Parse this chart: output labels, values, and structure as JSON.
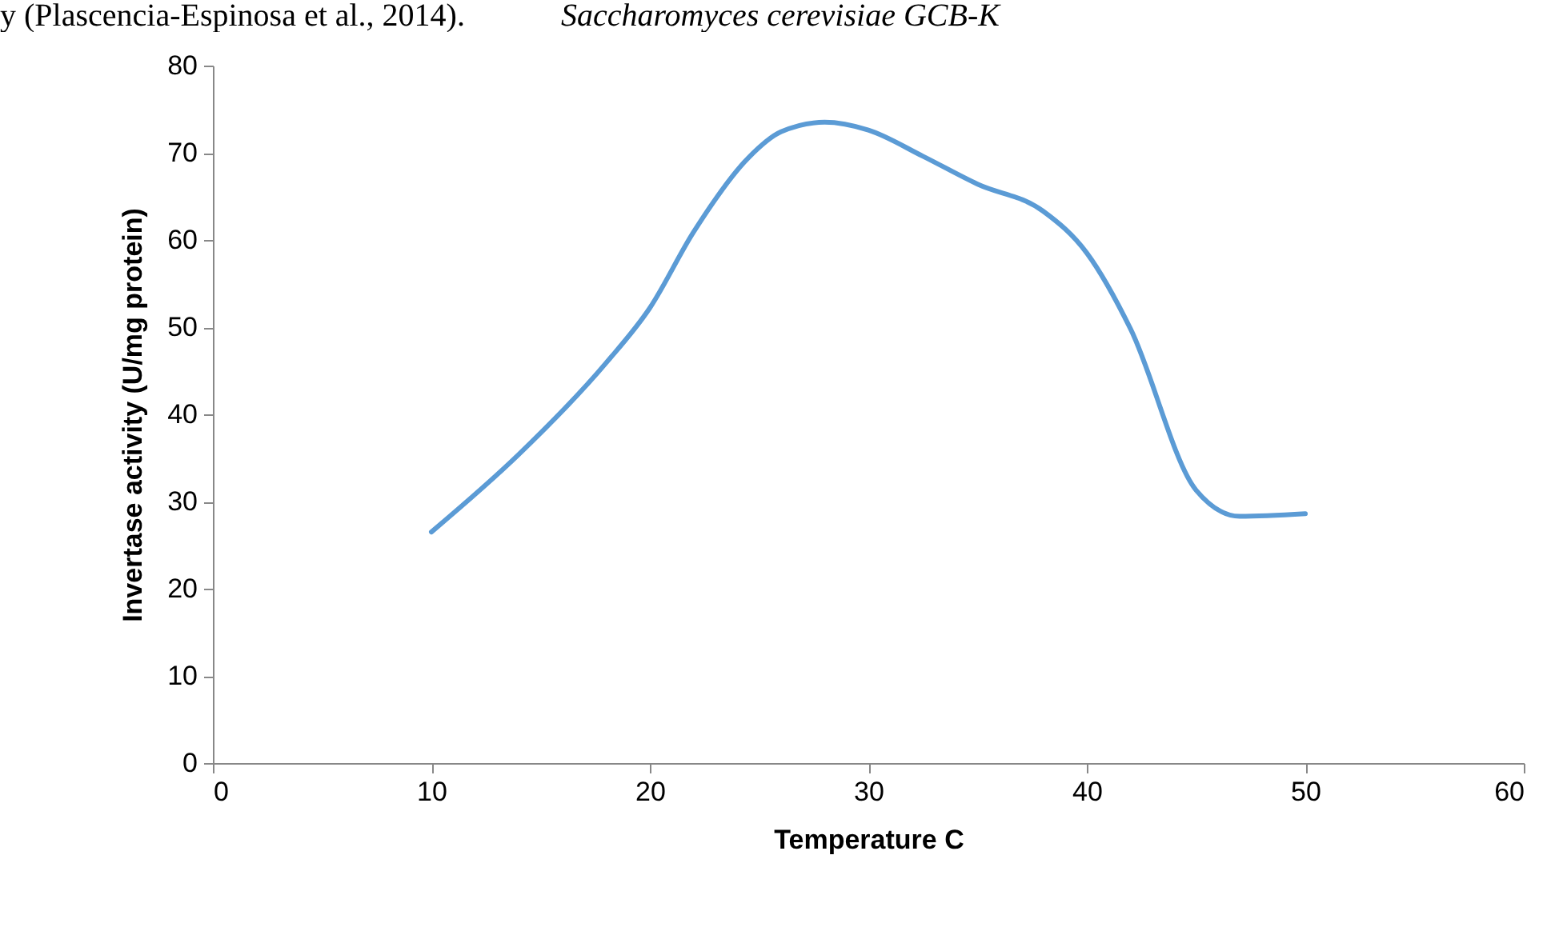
{
  "chart_data": {
    "type": "line",
    "xlabel": "Temperature C",
    "ylabel": "Invertase activity (U/mg protein)",
    "annotations": [
      "y (Plascencia-Espinosa et al., 2014).",
      "Saccharomyces cerevisiae GCB-K"
    ],
    "x": [
      10,
      14,
      18,
      20,
      22,
      24.5,
      26,
      28,
      30,
      32.5,
      35,
      38,
      40,
      42,
      45,
      47,
      50
    ],
    "series": [
      {
        "color": "#5b9bd5",
        "values": [
          26.5,
          35.4,
          45.9,
          52.2,
          60.9,
          69.4,
          72.4,
          73.5,
          72.6,
          69.6,
          66.4,
          63.3,
          58.5,
          49.8,
          31.3,
          28.3,
          28.6
        ]
      }
    ],
    "xlim": [
      0,
      60
    ],
    "xticks": [
      0,
      10,
      20,
      30,
      40,
      50,
      60
    ],
    "ylim": [
      0,
      80
    ],
    "yticks": [
      0,
      10,
      20,
      30,
      40,
      50,
      60,
      70,
      80
    ],
    "grid": false,
    "marker": "none",
    "line_style": "solid"
  }
}
